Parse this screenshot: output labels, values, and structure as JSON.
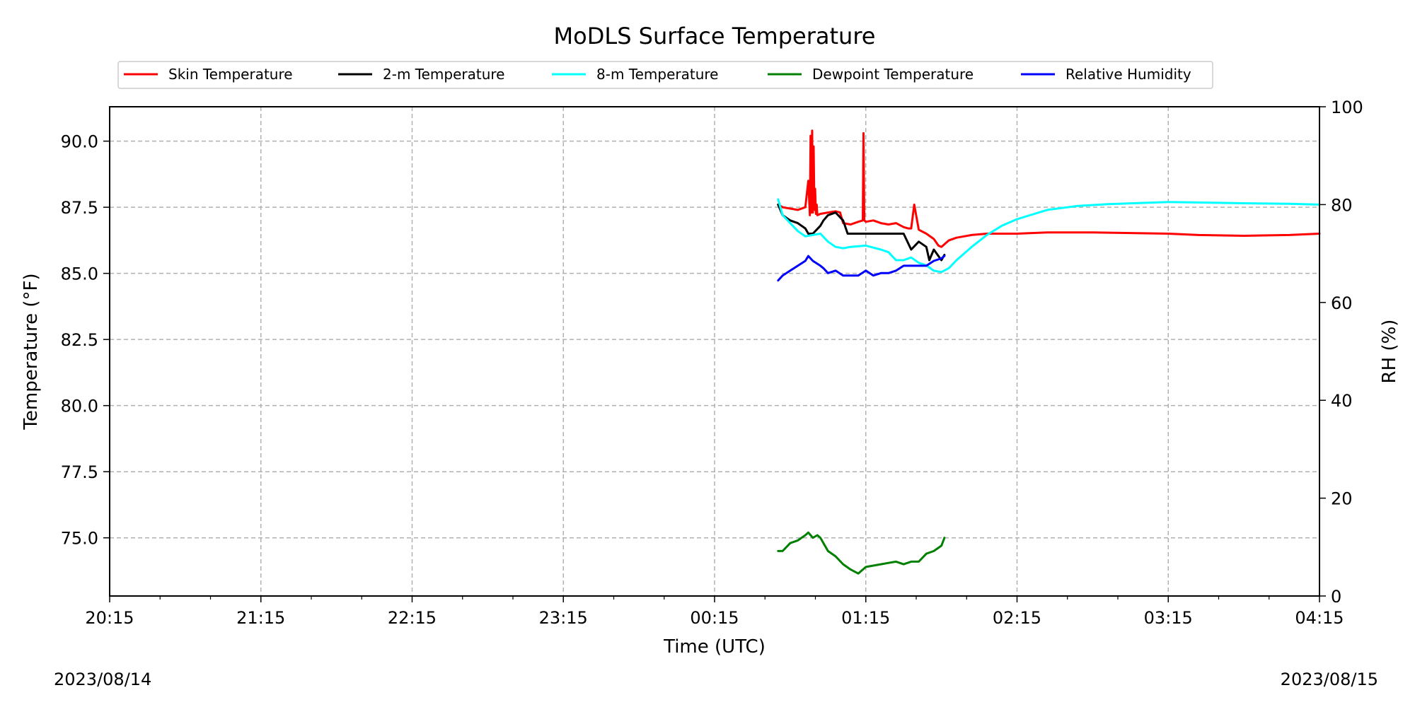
{
  "chart_data": {
    "type": "line",
    "title": "MoDLS Surface Temperature",
    "xlabel": "Time (UTC)",
    "ylabel": "Temperature ($^\\circ$F)",
    "ylabel_display": "Temperature (°F)",
    "y2label": "RH (%)",
    "x_ticks": [
      "20:15",
      "21:15",
      "22:15",
      "23:15",
      "00:15",
      "01:15",
      "02:15",
      "03:15",
      "04:15"
    ],
    "xlim_hours": [
      0,
      8
    ],
    "x_unit": "hours since 20:15 UTC 2023/08/14",
    "ylim": [
      72.8,
      91.3
    ],
    "y_ticks": [
      "75.0",
      "77.5",
      "80.0",
      "82.5",
      "85.0",
      "87.5",
      "90.0"
    ],
    "y2lim": [
      0,
      100
    ],
    "y2_ticks": [
      "0",
      "20",
      "40",
      "60",
      "80",
      "100"
    ],
    "start_date": "2023/08/14",
    "end_date": "2023/08/15",
    "grid": true,
    "legend_position": "top",
    "series": [
      {
        "name": "Skin Temperature",
        "color": "#ff0000",
        "axis": "left",
        "x": [
          4.42,
          4.45,
          4.5,
          4.55,
          4.6,
          4.62,
          4.63,
          4.635,
          4.64,
          4.645,
          4.65,
          4.655,
          4.66,
          4.665,
          4.67,
          4.675,
          4.68,
          4.7,
          4.75,
          4.8,
          4.83,
          4.85,
          4.9,
          4.95,
          4.98,
          4.985,
          4.99,
          5.0,
          5.05,
          5.1,
          5.15,
          5.2,
          5.25,
          5.28,
          5.3,
          5.32,
          5.35,
          5.4,
          5.45,
          5.48,
          5.5,
          5.52,
          5.55,
          5.6,
          5.65,
          5.7,
          5.8,
          6.0,
          6.2,
          6.5,
          7.0,
          7.2,
          7.5,
          7.8,
          8.0
        ],
        "y": [
          87.6,
          87.5,
          87.45,
          87.4,
          87.5,
          88.5,
          87.2,
          90.2,
          87.3,
          90.4,
          87.3,
          89.8,
          87.4,
          88.2,
          87.25,
          87.6,
          87.2,
          87.25,
          87.3,
          87.35,
          87.3,
          86.9,
          86.85,
          86.95,
          87.0,
          90.3,
          87.0,
          86.95,
          87.0,
          86.9,
          86.85,
          86.9,
          86.75,
          86.7,
          86.7,
          87.6,
          86.65,
          86.5,
          86.3,
          86.05,
          86.0,
          86.1,
          86.25,
          86.35,
          86.4,
          86.45,
          86.5,
          86.5,
          86.55,
          86.55,
          86.5,
          86.45,
          86.42,
          86.45,
          86.5
        ]
      },
      {
        "name": "2-m Temperature",
        "color": "#000000",
        "axis": "left",
        "x": [
          4.42,
          4.45,
          4.5,
          4.55,
          4.6,
          4.62,
          4.65,
          4.7,
          4.72,
          4.75,
          4.8,
          4.85,
          4.88,
          4.9,
          5.0,
          5.1,
          5.2,
          5.25,
          5.3,
          5.35,
          5.4,
          5.42,
          5.45,
          5.5,
          5.52
        ],
        "y": [
          87.6,
          87.2,
          87.0,
          86.9,
          86.7,
          86.5,
          86.5,
          86.8,
          87.0,
          87.2,
          87.3,
          87.0,
          86.5,
          86.5,
          86.5,
          86.5,
          86.5,
          86.5,
          85.9,
          86.2,
          86.0,
          85.5,
          85.9,
          85.5,
          85.7
        ]
      },
      {
        "name": "8-m Temperature",
        "color": "#00ffff",
        "axis": "left",
        "x": [
          4.42,
          4.45,
          4.5,
          4.55,
          4.6,
          4.65,
          4.7,
          4.75,
          4.8,
          4.85,
          4.9,
          5.0,
          5.1,
          5.15,
          5.2,
          5.25,
          5.3,
          5.35,
          5.4,
          5.45,
          5.5,
          5.55,
          5.6,
          5.7,
          5.8,
          5.9,
          6.0,
          6.2,
          6.4,
          6.6,
          6.8,
          7.0,
          7.2,
          7.5,
          7.8,
          8.0
        ],
        "y": [
          87.8,
          87.2,
          86.9,
          86.6,
          86.4,
          86.45,
          86.5,
          86.2,
          86.0,
          85.95,
          86.0,
          86.05,
          85.9,
          85.8,
          85.5,
          85.5,
          85.6,
          85.4,
          85.3,
          85.1,
          85.05,
          85.2,
          85.5,
          86.0,
          86.45,
          86.8,
          87.05,
          87.4,
          87.55,
          87.62,
          87.66,
          87.7,
          87.68,
          87.65,
          87.63,
          87.6
        ]
      },
      {
        "name": "Dewpoint Temperature",
        "color": "#008000",
        "axis": "left",
        "x": [
          4.42,
          4.45,
          4.5,
          4.55,
          4.6,
          4.62,
          4.65,
          4.68,
          4.7,
          4.72,
          4.75,
          4.8,
          4.85,
          4.9,
          4.95,
          5.0,
          5.05,
          5.1,
          5.15,
          5.2,
          5.25,
          5.3,
          5.35,
          5.4,
          5.45,
          5.5,
          5.52
        ],
        "y": [
          74.5,
          74.5,
          74.8,
          74.9,
          75.1,
          75.2,
          75.0,
          75.1,
          75.0,
          74.8,
          74.5,
          74.3,
          74.0,
          73.8,
          73.65,
          73.9,
          73.95,
          74.0,
          74.05,
          74.1,
          74.0,
          74.1,
          74.1,
          74.4,
          74.5,
          74.7,
          75.0
        ]
      },
      {
        "name": "Relative Humidity",
        "color": "#0000ff",
        "axis": "right",
        "x": [
          4.42,
          4.45,
          4.5,
          4.55,
          4.6,
          4.62,
          4.65,
          4.7,
          4.72,
          4.75,
          4.8,
          4.85,
          4.9,
          4.95,
          5.0,
          5.05,
          5.1,
          5.15,
          5.2,
          5.25,
          5.3,
          5.35,
          5.4,
          5.45,
          5.5,
          5.52
        ],
        "y": [
          64.5,
          65.5,
          66.5,
          67.5,
          68.5,
          69.5,
          68.5,
          67.5,
          67.0,
          66.0,
          66.5,
          65.5,
          65.5,
          65.5,
          66.5,
          65.5,
          66.0,
          66.0,
          66.5,
          67.5,
          67.5,
          67.5,
          67.5,
          68.5,
          69.0,
          69.5
        ]
      }
    ]
  }
}
